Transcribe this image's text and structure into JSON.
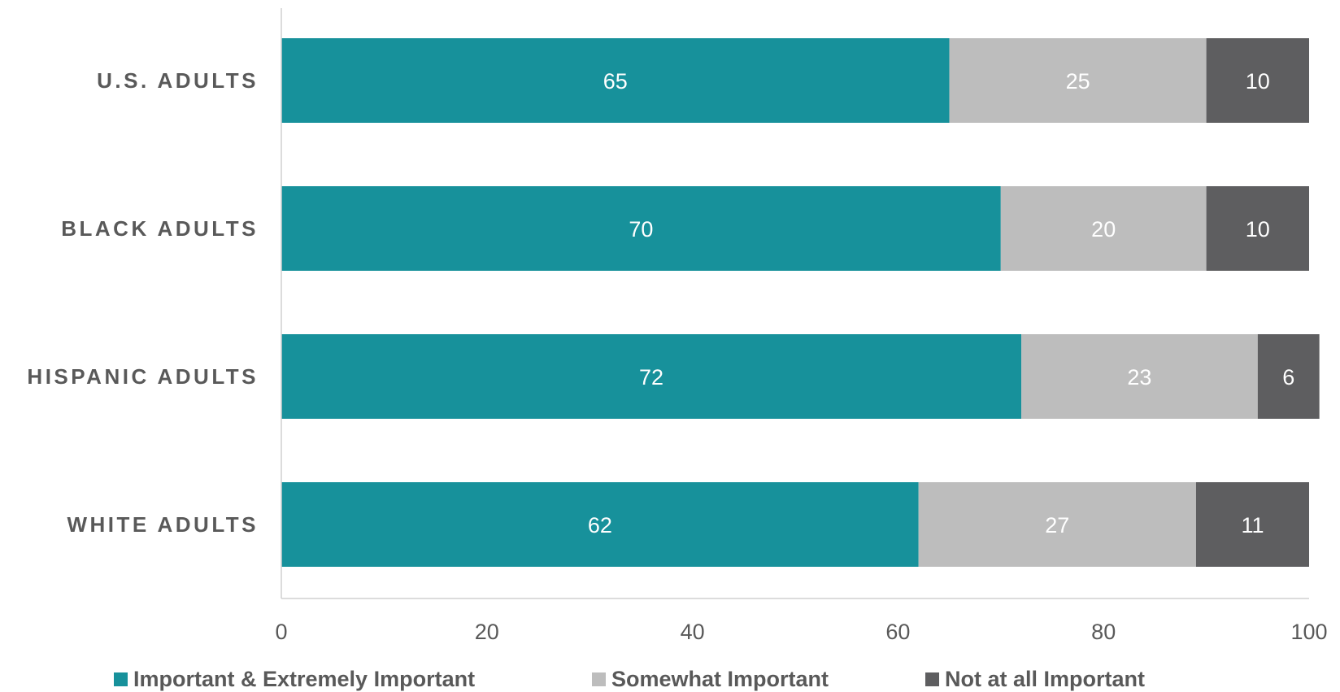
{
  "chart_data": {
    "type": "bar",
    "orientation": "horizontal",
    "stacked": true,
    "categories": [
      "U.S. ADULTS",
      "BLACK ADULTS",
      "HISPANIC ADULTS",
      "WHITE ADULTS"
    ],
    "series": [
      {
        "name": "Important & Extremely Important",
        "color": "#17919b",
        "values": [
          65,
          70,
          72,
          62
        ]
      },
      {
        "name": "Somewhat Important",
        "color": "#bdbdbd",
        "values": [
          25,
          20,
          23,
          27
        ]
      },
      {
        "name": "Not at all Important",
        "color": "#5e5e60",
        "values": [
          10,
          10,
          6,
          11
        ]
      }
    ],
    "xlim": [
      0,
      100
    ],
    "xticks": [
      "0",
      "20",
      "40",
      "60",
      "80",
      "100"
    ],
    "title": "",
    "xlabel": "",
    "ylabel": "",
    "grid": false,
    "legend_position": "bottom",
    "data_labels": true
  }
}
